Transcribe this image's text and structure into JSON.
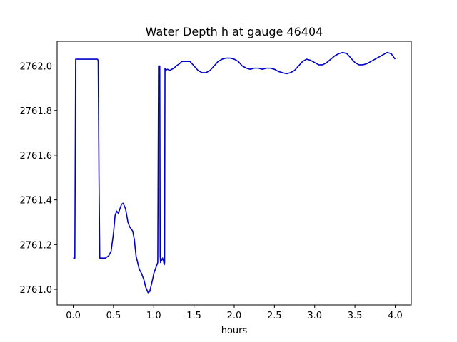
{
  "chart_data": {
    "type": "line",
    "title": "Water Depth h at gauge 46404",
    "xlabel": "hours",
    "ylabel": "",
    "xlim": [
      -0.2,
      4.2
    ],
    "ylim": [
      2760.93,
      2762.11
    ],
    "xticks": [
      0.0,
      0.5,
      1.0,
      1.5,
      2.0,
      2.5,
      3.0,
      3.5,
      4.0
    ],
    "xtick_labels": [
      "0.0",
      "0.5",
      "1.0",
      "1.5",
      "2.0",
      "2.5",
      "3.0",
      "3.5",
      "4.0"
    ],
    "yticks": [
      2761.0,
      2761.2,
      2761.4,
      2761.6,
      2761.8,
      2762.0
    ],
    "ytick_labels": [
      "2761.0",
      "2761.2",
      "2761.4",
      "2761.6",
      "2761.8",
      "2762.0"
    ],
    "grid": false,
    "series": [
      {
        "color": "#0000cc",
        "x": [
          0.0,
          0.02,
          0.02,
          0.03,
          0.1,
          0.2,
          0.3,
          0.31,
          0.32,
          0.33,
          0.4,
          0.44,
          0.47,
          0.5,
          0.52,
          0.54,
          0.56,
          0.58,
          0.6,
          0.62,
          0.65,
          0.68,
          0.7,
          0.72,
          0.74,
          0.76,
          0.78,
          0.8,
          0.82,
          0.85,
          0.88,
          0.9,
          0.93,
          0.95,
          0.97,
          0.99,
          1.0,
          1.02,
          1.05,
          1.06,
          1.065,
          1.07,
          1.075,
          1.08,
          1.085,
          1.09,
          1.1,
          1.11,
          1.12,
          1.13,
          1.135,
          1.14,
          1.15,
          1.17,
          1.2,
          1.25,
          1.28,
          1.32,
          1.35,
          1.4,
          1.45,
          1.5,
          1.55,
          1.6,
          1.65,
          1.7,
          1.75,
          1.8,
          1.85,
          1.9,
          1.95,
          2.0,
          2.05,
          2.1,
          2.15,
          2.2,
          2.25,
          2.3,
          2.35,
          2.4,
          2.45,
          2.5,
          2.55,
          2.6,
          2.65,
          2.7,
          2.75,
          2.8,
          2.85,
          2.9,
          2.95,
          3.0,
          3.05,
          3.1,
          3.15,
          3.2,
          3.25,
          3.3,
          3.35,
          3.4,
          3.45,
          3.5,
          3.55,
          3.6,
          3.65,
          3.7,
          3.75,
          3.8,
          3.85,
          3.9,
          3.95,
          4.0
        ],
        "y": [
          2761.14,
          2761.14,
          2761.14,
          2762.03,
          2762.03,
          2762.03,
          2762.03,
          2762.025,
          2761.5,
          2761.14,
          2761.14,
          2761.15,
          2761.17,
          2761.25,
          2761.33,
          2761.35,
          2761.34,
          2761.36,
          2761.38,
          2761.385,
          2761.36,
          2761.3,
          2761.28,
          2761.27,
          2761.26,
          2761.22,
          2761.15,
          2761.12,
          2761.09,
          2761.07,
          2761.04,
          2761.01,
          2760.985,
          2760.99,
          2761.02,
          2761.05,
          2761.07,
          2761.09,
          2761.12,
          2762.0,
          2761.99,
          2762.0,
          2762.0,
          2761.15,
          2761.12,
          2761.13,
          2761.13,
          2761.14,
          2761.13,
          2761.11,
          2761.12,
          2761.99,
          2761.98,
          2761.985,
          2761.98,
          2761.99,
          2762.0,
          2762.01,
          2762.02,
          2762.02,
          2762.02,
          2762.0,
          2761.98,
          2761.97,
          2761.97,
          2761.98,
          2762.0,
          2762.02,
          2762.03,
          2762.035,
          2762.035,
          2762.03,
          2762.02,
          2762.0,
          2761.99,
          2761.985,
          2761.99,
          2761.99,
          2761.985,
          2761.99,
          2761.99,
          2761.985,
          2761.975,
          2761.97,
          2761.965,
          2761.97,
          2761.98,
          2762.0,
          2762.02,
          2762.03,
          2762.025,
          2762.015,
          2762.005,
          2762.005,
          2762.015,
          2762.03,
          2762.045,
          2762.055,
          2762.06,
          2762.055,
          2762.035,
          2762.015,
          2762.005,
          2762.005,
          2762.01,
          2762.02,
          2762.03,
          2762.04,
          2762.05,
          2762.06,
          2762.055,
          2762.03
        ]
      }
    ]
  }
}
